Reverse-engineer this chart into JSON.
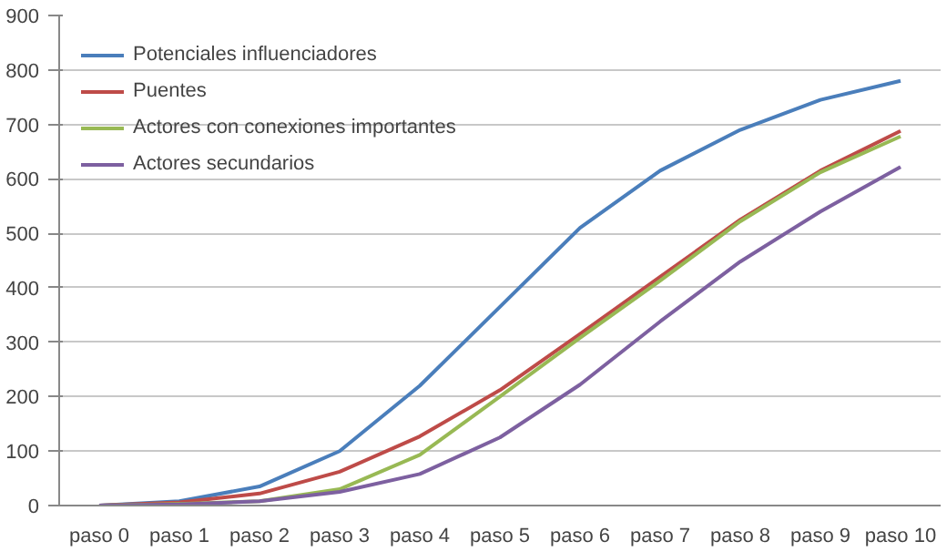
{
  "chart_data": {
    "type": "line",
    "categories": [
      "paso 0",
      "paso 1",
      "paso 2",
      "paso 3",
      "paso 4",
      "paso 5",
      "paso 6",
      "paso 7",
      "paso 8",
      "paso 9",
      "paso 10"
    ],
    "series": [
      {
        "name": "Potenciales influenciadores",
        "color": "#4a7ebb",
        "values": [
          0,
          8,
          35,
          100,
          220,
          365,
          510,
          615,
          690,
          745,
          780
        ]
      },
      {
        "name": "Puentes",
        "color": "#be4b48",
        "values": [
          0,
          6,
          22,
          62,
          127,
          212,
          315,
          420,
          525,
          615,
          688
        ]
      },
      {
        "name": "Actores con conexiones importantes",
        "color": "#98b954",
        "values": [
          0,
          3,
          8,
          30,
          93,
          200,
          308,
          413,
          522,
          612,
          678
        ]
      },
      {
        "name": "Actores secundarios",
        "color": "#7d60a0",
        "values": [
          0,
          2,
          8,
          25,
          58,
          125,
          222,
          338,
          448,
          540,
          622
        ]
      }
    ],
    "ylim": [
      0,
      900
    ],
    "yticks": [
      0,
      100,
      200,
      300,
      400,
      500,
      600,
      700,
      800,
      900
    ],
    "grid": "y",
    "legend": "top left",
    "marker": "none",
    "line_style": "solid"
  }
}
